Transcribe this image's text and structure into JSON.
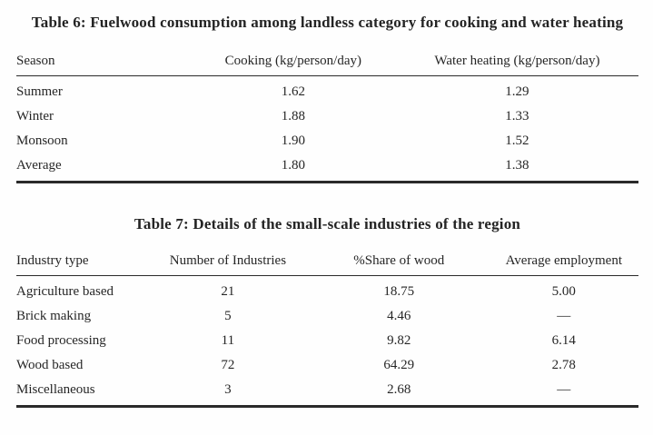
{
  "table6": {
    "title": "Table 6: Fuelwood consumption among landless category for cooking and water heating",
    "columns": [
      "Season",
      "Cooking (kg/person/day)",
      "Water heating (kg/person/day)"
    ],
    "rows": [
      [
        "Summer",
        "1.62",
        "1.29"
      ],
      [
        "Winter",
        "1.88",
        "1.33"
      ],
      [
        "Monsoon",
        "1.90",
        "1.52"
      ],
      [
        "Average",
        "1.80",
        "1.38"
      ]
    ]
  },
  "table7": {
    "title": "Table 7: Details of the small-scale industries of the region",
    "columns": [
      "Industry type",
      "Number of Industries",
      "%Share of wood",
      "Average employment"
    ],
    "rows": [
      [
        "Agriculture based",
        "21",
        "18.75",
        "5.00"
      ],
      [
        "Brick making",
        "5",
        "4.46",
        "—"
      ],
      [
        "Food processing",
        "11",
        "9.82",
        "6.14"
      ],
      [
        "Wood based",
        "72",
        "64.29",
        "2.78"
      ],
      [
        "Miscellaneous",
        "3",
        "2.68",
        "—"
      ]
    ]
  }
}
